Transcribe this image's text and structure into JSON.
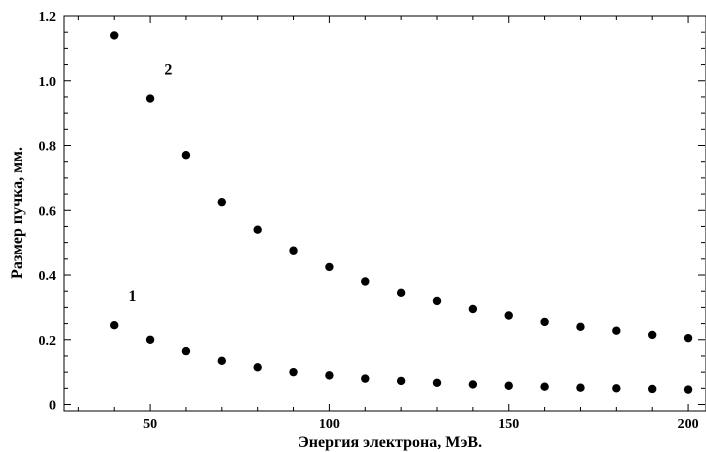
{
  "chart_data": {
    "type": "scatter",
    "title": "",
    "xlabel": "Энергия электрона, МэВ.",
    "ylabel": "Размер пучка, мм.",
    "xlim": [
      26,
      205
    ],
    "ylim": [
      -0.02,
      1.2
    ],
    "xticks": [
      50,
      100,
      150,
      200
    ],
    "xtick_labels": [
      "50",
      "100",
      "150",
      "200"
    ],
    "yticks": [
      0,
      0.2,
      0.4,
      0.6,
      0.8,
      1.0,
      1.2
    ],
    "ytick_labels": [
      "0",
      "0.2",
      "0.4",
      "0.6",
      "0.8",
      "1.0",
      "1.2"
    ],
    "grid": false,
    "legend": "none",
    "series": [
      {
        "name": "2",
        "x": [
          40,
          50,
          60,
          70,
          80,
          90,
          100,
          110,
          120,
          130,
          140,
          150,
          160,
          170,
          180,
          190,
          200
        ],
        "y": [
          1.14,
          0.945,
          0.77,
          0.625,
          0.54,
          0.475,
          0.425,
          0.38,
          0.345,
          0.32,
          0.295,
          0.275,
          0.255,
          0.24,
          0.228,
          0.215,
          0.205
        ]
      },
      {
        "name": "1",
        "x": [
          40,
          50,
          60,
          70,
          80,
          90,
          100,
          110,
          120,
          130,
          140,
          150,
          160,
          170,
          180,
          190,
          200
        ],
        "y": [
          0.245,
          0.2,
          0.165,
          0.135,
          0.115,
          0.1,
          0.09,
          0.08,
          0.073,
          0.067,
          0.062,
          0.058,
          0.055,
          0.052,
          0.05,
          0.048,
          0.046
        ]
      }
    ],
    "annotations": [
      {
        "text": "2",
        "x": 54,
        "y": 1.02
      },
      {
        "text": "1",
        "x": 44,
        "y": 0.32
      }
    ]
  }
}
